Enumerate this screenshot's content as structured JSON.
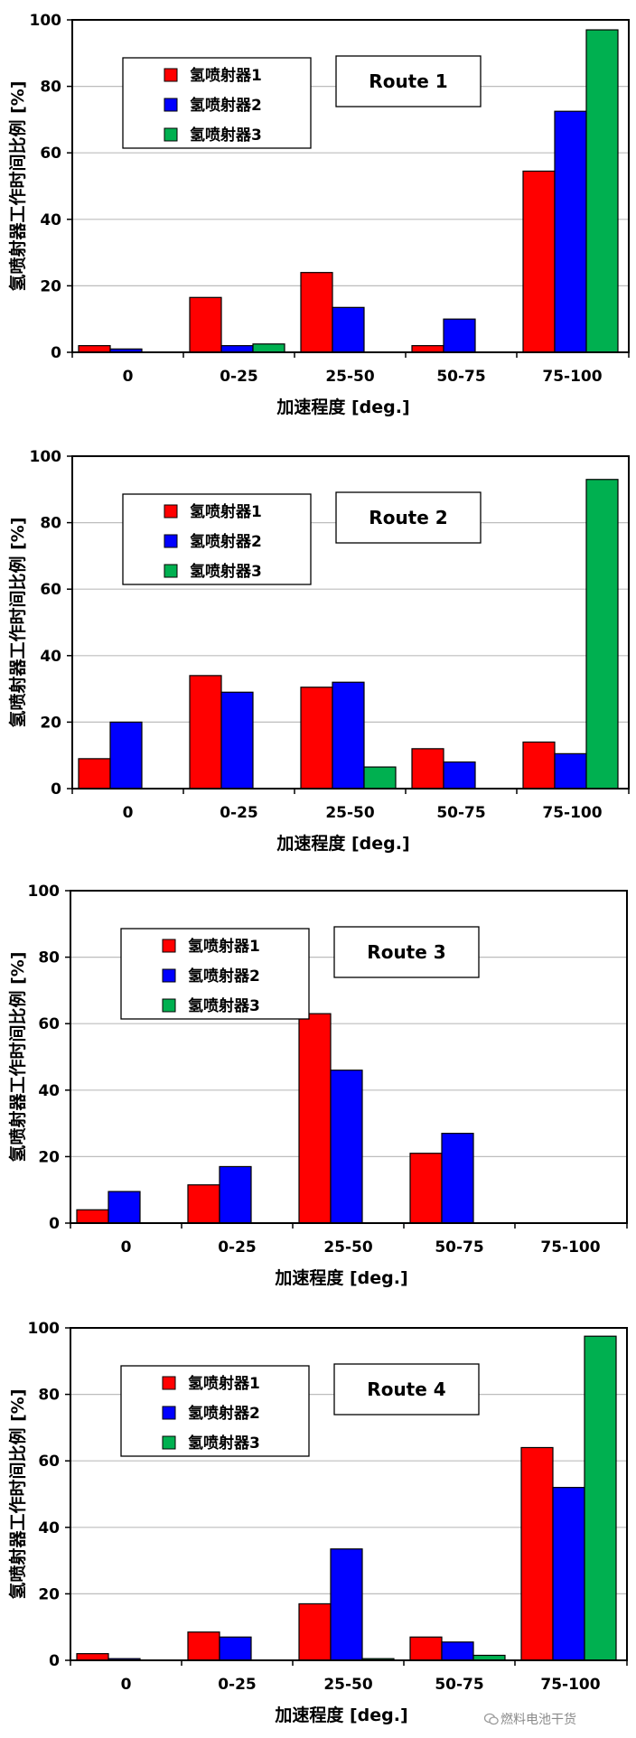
{
  "legend": {
    "labels": [
      "氢喷射器1",
      "氢喷射器2",
      "氢喷射器3"
    ]
  },
  "colors": {
    "series": [
      "#ff0000",
      "#0000ff",
      "#00b050"
    ],
    "grid": "#bdbdbd",
    "frame": "#000000"
  },
  "watermark": {
    "text": "燃料电池干货",
    "icon": "wechat-icon"
  },
  "chart_data": [
    {
      "type": "bar",
      "title": "Route 1",
      "xlabel": "加速程度 [deg.]",
      "ylabel": "氢喷射器工作时间比例 [%]",
      "ylim": [
        0,
        100
      ],
      "yticks": [
        0,
        20,
        40,
        60,
        80,
        100
      ],
      "grid": true,
      "legend_position": "top-left",
      "categories": [
        "0",
        "0-25",
        "25-50",
        "50-75",
        "75-100"
      ],
      "series": [
        {
          "name": "氢喷射器1",
          "values": [
            2,
            16.5,
            24,
            2,
            54.5
          ]
        },
        {
          "name": "氢喷射器2",
          "values": [
            1,
            2,
            13.5,
            10,
            72.5
          ]
        },
        {
          "name": "氢喷射器3",
          "values": [
            0,
            2.5,
            0,
            0,
            97
          ]
        }
      ]
    },
    {
      "type": "bar",
      "title": "Route 2",
      "xlabel": "加速程度 [deg.]",
      "ylabel": "氢喷射器工作时间比例 [%]",
      "ylim": [
        0,
        100
      ],
      "yticks": [
        0,
        20,
        40,
        60,
        80,
        100
      ],
      "grid": true,
      "legend_position": "top-left",
      "categories": [
        "0",
        "0-25",
        "25-50",
        "50-75",
        "75-100"
      ],
      "series": [
        {
          "name": "氢喷射器1",
          "values": [
            9,
            34,
            30.5,
            12,
            14
          ]
        },
        {
          "name": "氢喷射器2",
          "values": [
            20,
            29,
            32,
            8,
            10.5
          ]
        },
        {
          "name": "氢喷射器3",
          "values": [
            0,
            0,
            6.5,
            0,
            93
          ]
        }
      ]
    },
    {
      "type": "bar",
      "title": "Route 3",
      "xlabel": "加速程度 [deg.]",
      "ylabel": "氢喷射器工作时间比例 [%]",
      "ylim": [
        0,
        100
      ],
      "yticks": [
        0,
        20,
        40,
        60,
        80,
        100
      ],
      "grid": true,
      "legend_position": "top-left",
      "categories": [
        "0",
        "0-25",
        "25-50",
        "50-75",
        "75-100"
      ],
      "series": [
        {
          "name": "氢喷射器1",
          "values": [
            4,
            11.5,
            63,
            21,
            0
          ]
        },
        {
          "name": "氢喷射器2",
          "values": [
            9.5,
            17,
            46,
            27,
            0
          ]
        },
        {
          "name": "氢喷射器3",
          "values": [
            0,
            0,
            0,
            0,
            0
          ]
        }
      ]
    },
    {
      "type": "bar",
      "title": "Route 4",
      "xlabel": "加速程度 [deg.]",
      "ylabel": "氢喷射器工作时间比例 [%]",
      "ylim": [
        0,
        100
      ],
      "yticks": [
        0,
        20,
        40,
        60,
        80,
        100
      ],
      "grid": true,
      "legend_position": "top-left",
      "categories": [
        "0",
        "0-25",
        "25-50",
        "50-75",
        "75-100"
      ],
      "series": [
        {
          "name": "氢喷射器1",
          "values": [
            2,
            8.5,
            17,
            7,
            64
          ]
        },
        {
          "name": "氢喷射器2",
          "values": [
            0.5,
            7,
            33.5,
            5.5,
            52
          ]
        },
        {
          "name": "氢喷射器3",
          "values": [
            0,
            0,
            0.5,
            1.5,
            97.5
          ]
        }
      ]
    }
  ]
}
